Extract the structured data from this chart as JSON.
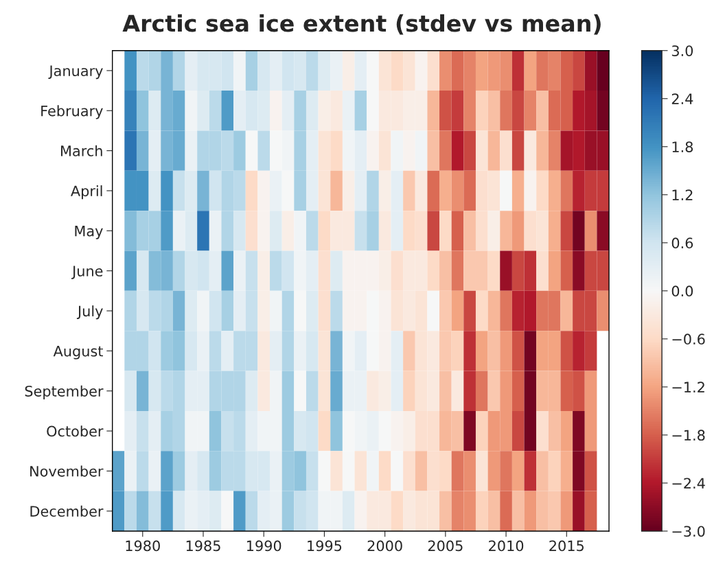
{
  "chart_data": {
    "type": "heatmap",
    "title": "Arctic sea ice extent (stdev vs mean)",
    "x": [
      1978,
      1979,
      1980,
      1981,
      1982,
      1983,
      1984,
      1985,
      1986,
      1987,
      1988,
      1989,
      1990,
      1991,
      1992,
      1993,
      1994,
      1995,
      1996,
      1997,
      1998,
      1999,
      2000,
      2001,
      2002,
      2003,
      2004,
      2005,
      2006,
      2007,
      2008,
      2009,
      2010,
      2011,
      2012,
      2013,
      2014,
      2015,
      2016,
      2017,
      2018
    ],
    "y_categories": [
      "January",
      "February",
      "March",
      "April",
      "May",
      "June",
      "July",
      "August",
      "September",
      "October",
      "November",
      "December"
    ],
    "cells": [
      [
        null,
        1.8,
        0.8,
        0.9,
        1.4,
        0.9,
        0.3,
        0.5,
        0.5,
        0.6,
        0.1,
        1.0,
        0.5,
        0.3,
        0.6,
        0.5,
        0.8,
        0.4,
        0.2,
        -0.2,
        0.3,
        0.0,
        -0.4,
        -0.6,
        -0.4,
        -0.1,
        -0.5,
        -1.4,
        -1.7,
        -1.5,
        -1.2,
        -1.3,
        -1.4,
        -2.2,
        -1.2,
        -1.6,
        -1.5,
        -1.8,
        -2.0,
        -2.6,
        -3.0
      ],
      [
        null,
        2.0,
        1.2,
        0.4,
        1.4,
        1.5,
        0.1,
        0.4,
        0.8,
        1.7,
        0.3,
        0.5,
        0.4,
        -0.1,
        0.3,
        1.0,
        0.4,
        -0.2,
        -0.3,
        0.2,
        1.0,
        0.0,
        -0.3,
        -0.3,
        -0.2,
        -0.2,
        -1.0,
        -1.9,
        -2.1,
        -1.5,
        -0.7,
        -0.9,
        -1.6,
        -2.0,
        -1.5,
        -0.9,
        -1.7,
        -1.8,
        -2.4,
        -2.5,
        -2.9
      ],
      [
        null,
        2.2,
        1.4,
        0.3,
        1.4,
        1.5,
        0.2,
        0.9,
        0.9,
        0.8,
        1.1,
        0.0,
        0.8,
        0.0,
        0.1,
        1.0,
        0.3,
        -0.4,
        -0.6,
        0.1,
        0.3,
        -0.1,
        -0.4,
        0.1,
        -0.1,
        0.1,
        -0.9,
        -1.6,
        -2.4,
        -2.0,
        -0.4,
        -1.0,
        -0.5,
        -2.0,
        -0.3,
        -1.0,
        -1.5,
        -2.5,
        -2.4,
        -2.6,
        -2.6
      ],
      [
        null,
        1.8,
        1.8,
        0.4,
        1.8,
        0.7,
        0.4,
        1.4,
        0.6,
        0.9,
        0.8,
        -0.6,
        -0.1,
        0.2,
        0.0,
        1.0,
        0.3,
        -0.4,
        -1.0,
        -0.2,
        0.3,
        0.9,
        -0.2,
        0.3,
        -0.8,
        -0.3,
        -1.7,
        -1.1,
        -1.4,
        -1.7,
        -0.5,
        -0.4,
        0.0,
        -1.1,
        -0.1,
        -0.6,
        -1.1,
        -1.6,
        -2.3,
        -2.1,
        -2.1
      ],
      [
        null,
        1.3,
        1.0,
        1.0,
        1.7,
        0.2,
        0.4,
        2.2,
        0.2,
        0.9,
        0.5,
        -0.5,
        -0.1,
        0.4,
        -0.2,
        0.1,
        0.8,
        -0.6,
        -0.3,
        -0.3,
        0.7,
        1.0,
        -0.3,
        0.3,
        -0.6,
        -0.5,
        -2.0,
        -0.6,
        -1.8,
        -0.9,
        -0.5,
        -0.2,
        -1.0,
        -1.3,
        -0.5,
        -0.4,
        -1.1,
        -2.0,
        -2.9,
        -1.4,
        -2.7
      ],
      [
        null,
        1.6,
        0.5,
        1.3,
        1.4,
        0.9,
        0.5,
        0.6,
        0.3,
        1.6,
        0.2,
        0.7,
        -0.2,
        0.8,
        0.6,
        0.1,
        0.3,
        -0.5,
        0.4,
        -0.1,
        -0.1,
        -0.1,
        -0.2,
        -0.5,
        -0.3,
        -0.3,
        -0.6,
        -0.9,
        -1.6,
        -0.8,
        -0.8,
        -0.6,
        -2.6,
        -2.0,
        -2.2,
        -0.5,
        -1.2,
        -1.8,
        -2.7,
        -2.0,
        -2.0
      ],
      [
        null,
        0.9,
        0.5,
        0.8,
        0.9,
        1.4,
        0.4,
        0.1,
        0.6,
        1.0,
        0.3,
        0.7,
        -0.2,
        0.1,
        0.9,
        0.0,
        0.4,
        -0.5,
        0.8,
        -0.1,
        -0.1,
        0.0,
        -0.1,
        -0.4,
        -0.3,
        -0.4,
        0.0,
        -0.8,
        -1.2,
        -2.0,
        -0.6,
        -1.0,
        -1.6,
        -2.3,
        -2.4,
        -1.6,
        -1.6,
        -1.0,
        -2.0,
        -2.0,
        -1.4
      ],
      [
        null,
        0.9,
        0.9,
        0.6,
        1.1,
        1.2,
        0.5,
        0.2,
        0.8,
        0.3,
        0.8,
        0.8,
        -0.3,
        0.3,
        0.9,
        0.2,
        0.5,
        -0.4,
        1.4,
        0.1,
        0.3,
        0.0,
        -0.1,
        0.3,
        -0.8,
        -0.4,
        -0.3,
        -0.8,
        -0.7,
        -2.2,
        -1.2,
        -0.9,
        -1.3,
        -1.9,
        -2.9,
        -1.2,
        -1.2,
        -1.9,
        -2.3,
        -2.1,
        null
      ],
      [
        null,
        0.5,
        1.4,
        0.5,
        0.8,
        0.9,
        0.3,
        0.3,
        0.9,
        0.9,
        0.9,
        0.4,
        -0.3,
        0.1,
        1.1,
        0.0,
        0.8,
        -0.4,
        1.5,
        0.2,
        0.2,
        -0.3,
        -0.2,
        0.3,
        -0.7,
        -0.4,
        -0.3,
        -0.9,
        -0.3,
        -2.2,
        -1.6,
        -0.8,
        -1.3,
        -1.8,
        -2.9,
        -1.0,
        -1.0,
        -1.8,
        -1.9,
        -1.3,
        null
      ],
      [
        null,
        0.3,
        0.7,
        0.3,
        1.0,
        0.9,
        0.1,
        0.1,
        1.2,
        0.7,
        0.8,
        0.3,
        0.1,
        0.1,
        1.1,
        0.5,
        0.6,
        -0.6,
        1.2,
        0.0,
        0.1,
        0.2,
        0.0,
        -0.1,
        -0.2,
        -0.5,
        -0.5,
        -1.0,
        -0.9,
        -2.8,
        -0.7,
        -1.3,
        -1.3,
        -2.0,
        -2.9,
        -0.5,
        -0.9,
        -1.2,
        -2.8,
        -1.3,
        null
      ],
      [
        1.6,
        0.2,
        0.8,
        0.2,
        1.6,
        1.1,
        0.3,
        0.5,
        1.1,
        0.8,
        0.8,
        0.5,
        0.5,
        0.2,
        1.1,
        1.2,
        0.7,
        0.0,
        -0.4,
        0.0,
        -0.4,
        0.1,
        -0.6,
        0.0,
        -0.5,
        -0.9,
        -0.5,
        -0.6,
        -1.6,
        -1.4,
        -0.4,
        -1.3,
        -1.6,
        -1.2,
        -2.2,
        -0.9,
        -0.7,
        -1.1,
        -2.8,
        -1.9,
        null
      ],
      [
        1.7,
        0.8,
        1.3,
        0.7,
        1.7,
        0.5,
        0.2,
        0.3,
        0.4,
        0.0,
        1.7,
        0.8,
        0.3,
        0.2,
        1.1,
        0.7,
        0.6,
        0.1,
        0.1,
        0.4,
        -0.1,
        -0.3,
        -0.3,
        -0.6,
        -0.3,
        -0.4,
        -0.4,
        -0.9,
        -1.5,
        -1.4,
        -0.7,
        -0.9,
        -1.7,
        -0.9,
        -1.3,
        -0.9,
        -0.8,
        -1.3,
        -2.6,
        -1.8,
        null
      ]
    ],
    "xlim": [
      1977.5,
      2018.5
    ],
    "xticks": [
      1980,
      1985,
      1990,
      1995,
      2000,
      2005,
      2010,
      2015
    ],
    "clim": [
      -3.0,
      3.0
    ],
    "cticks": [
      {
        "value": -3.0,
        "label": "−3.0"
      },
      {
        "value": -2.4,
        "label": "−2.4"
      },
      {
        "value": -1.8,
        "label": "−1.8"
      },
      {
        "value": -1.2,
        "label": "−1.2"
      },
      {
        "value": -0.6,
        "label": "−0.6"
      },
      {
        "value": 0.0,
        "label": "0.0"
      },
      {
        "value": 0.6,
        "label": "0.6"
      },
      {
        "value": 1.2,
        "label": "1.2"
      },
      {
        "value": 1.8,
        "label": "1.8"
      },
      {
        "value": 2.4,
        "label": "2.4"
      },
      {
        "value": 3.0,
        "label": "3.0"
      }
    ],
    "grid": false
  }
}
